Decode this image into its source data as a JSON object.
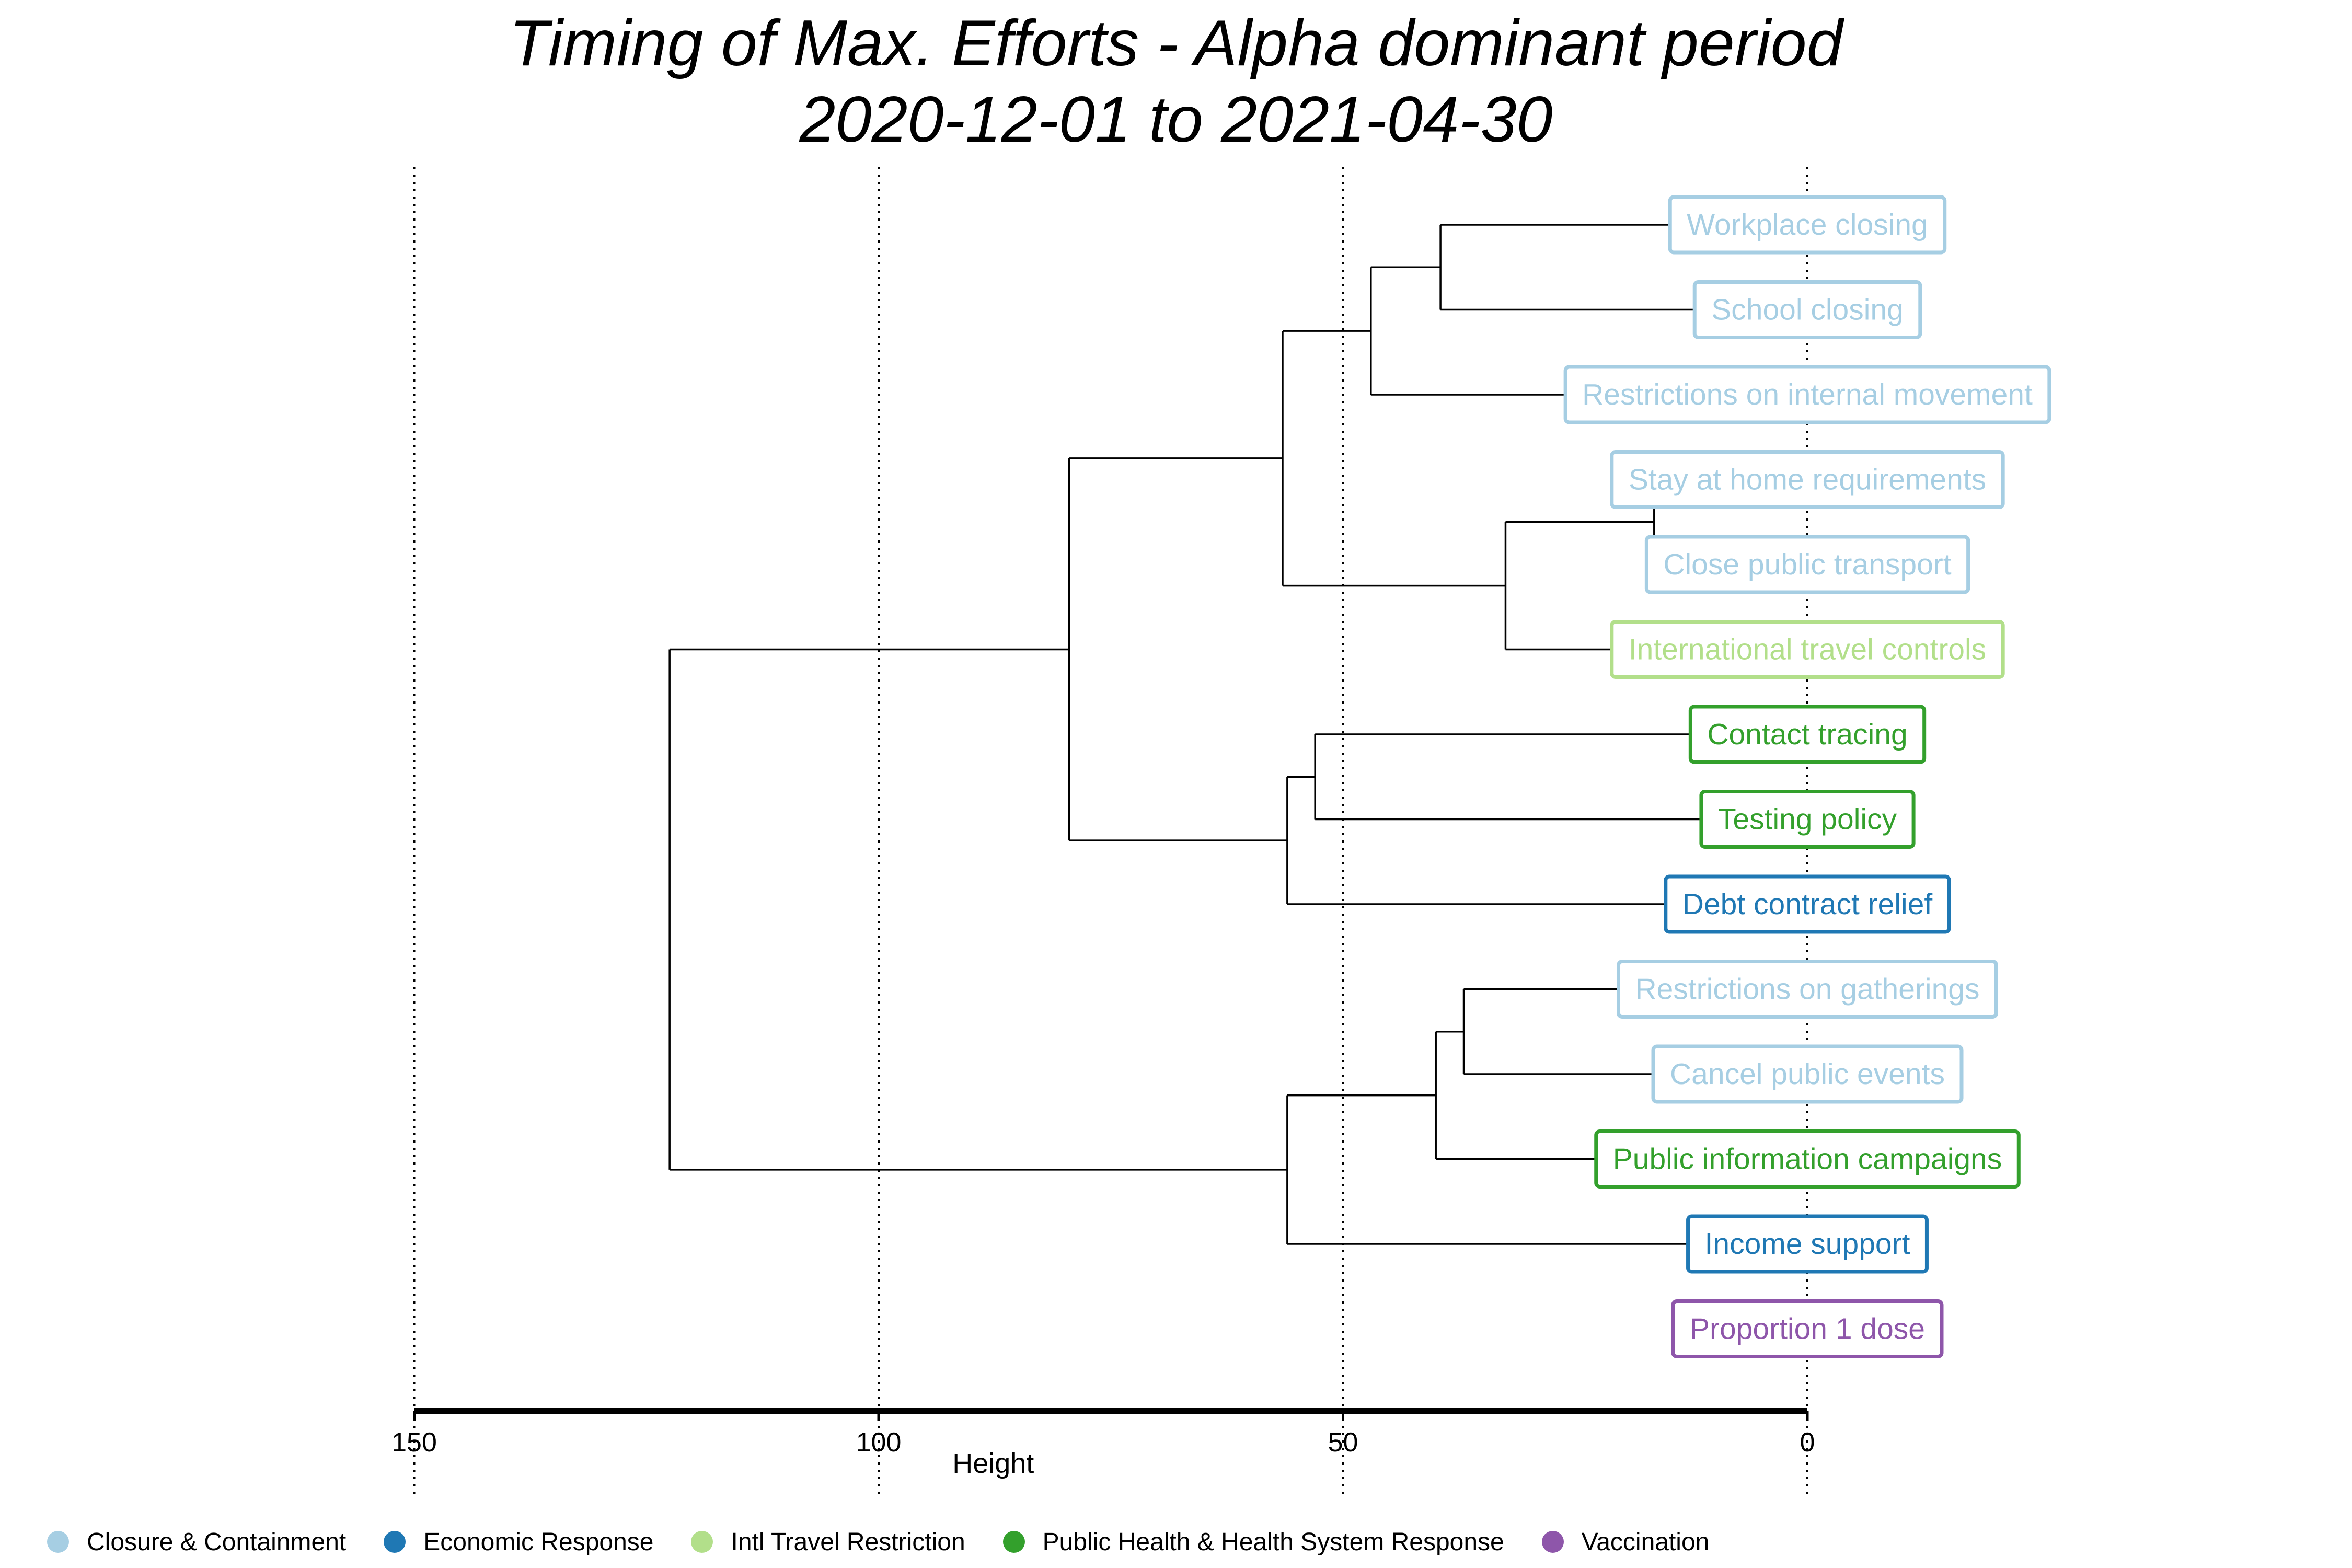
{
  "title": {
    "line1": "Timing of Max. Efforts - Alpha dominant period",
    "line2": "2020-12-01 to 2021-04-30"
  },
  "axis": {
    "label": "Height",
    "ticks": [
      150,
      100,
      50,
      0
    ]
  },
  "categories": {
    "closure": {
      "name": "Closure & Containment",
      "color": "#a6cee3"
    },
    "economic": {
      "name": "Economic Response",
      "color": "#1f78b4"
    },
    "travel": {
      "name": "Intl Travel Restriction",
      "color": "#b2df8a"
    },
    "health": {
      "name": "Public Health & Health System Response",
      "color": "#33a02c"
    },
    "vaccination": {
      "name": "Vaccination",
      "color": "#8e56aa"
    }
  },
  "legend": [
    "closure",
    "economic",
    "travel",
    "health",
    "vaccination"
  ],
  "leaves": [
    {
      "id": "L0",
      "label": "Workplace closing",
      "category": "closure",
      "leaf_height": 0
    },
    {
      "id": "L1",
      "label": "School closing",
      "category": "closure",
      "leaf_height": 0
    },
    {
      "id": "L2",
      "label": "Restrictions on internal movement",
      "category": "closure",
      "leaf_height": 0
    },
    {
      "id": "L3",
      "label": "Stay at home requirements",
      "category": "closure",
      "leaf_height": 0
    },
    {
      "id": "L4",
      "label": "Close public transport",
      "category": "closure",
      "leaf_height": 0
    },
    {
      "id": "L5",
      "label": "International travel controls",
      "category": "travel",
      "leaf_height": 0
    },
    {
      "id": "L6",
      "label": "Contact tracing",
      "category": "health",
      "leaf_height": 0
    },
    {
      "id": "L7",
      "label": "Testing policy",
      "category": "health",
      "leaf_height": 0
    },
    {
      "id": "L8",
      "label": "Debt contract relief",
      "category": "economic",
      "leaf_height": 0
    },
    {
      "id": "L9",
      "label": "Restrictions on gatherings",
      "category": "closure",
      "leaf_height": 0
    },
    {
      "id": "L10",
      "label": "Cancel public events",
      "category": "closure",
      "leaf_height": 0
    },
    {
      "id": "L11",
      "label": "Public information campaigns",
      "category": "health",
      "leaf_height": 0
    },
    {
      "id": "L12",
      "label": "Income support",
      "category": "economic",
      "leaf_height": 0
    },
    {
      "id": "L13",
      "label": "Proportion 1 dose",
      "category": "vaccination",
      "leaf_height": null
    }
  ],
  "merges": [
    {
      "id": "M1",
      "children": [
        "L0",
        "L1"
      ],
      "height": 39.5
    },
    {
      "id": "M2",
      "children": [
        "M1",
        "L2"
      ],
      "height": 47
    },
    {
      "id": "M3",
      "children": [
        "L3",
        "L4"
      ],
      "height": 16.5
    },
    {
      "id": "M4",
      "children": [
        "M3",
        "L5"
      ],
      "height": 32.5
    },
    {
      "id": "M5",
      "children": [
        "M2",
        "M4"
      ],
      "height": 56.5
    },
    {
      "id": "M6",
      "children": [
        "L6",
        "L7"
      ],
      "height": 53
    },
    {
      "id": "M7",
      "children": [
        "M6",
        "L8"
      ],
      "height": 56
    },
    {
      "id": "M8",
      "children": [
        "M5",
        "M7"
      ],
      "height": 79.5
    },
    {
      "id": "M9",
      "children": [
        "L9",
        "L10"
      ],
      "height": 37
    },
    {
      "id": "M10",
      "children": [
        "M9",
        "L11"
      ],
      "height": 40
    },
    {
      "id": "M11",
      "children": [
        "M10",
        "L12"
      ],
      "height": 56
    },
    {
      "id": "M12",
      "children": [
        "M8",
        "M11"
      ],
      "height": 122.5
    }
  ]
}
